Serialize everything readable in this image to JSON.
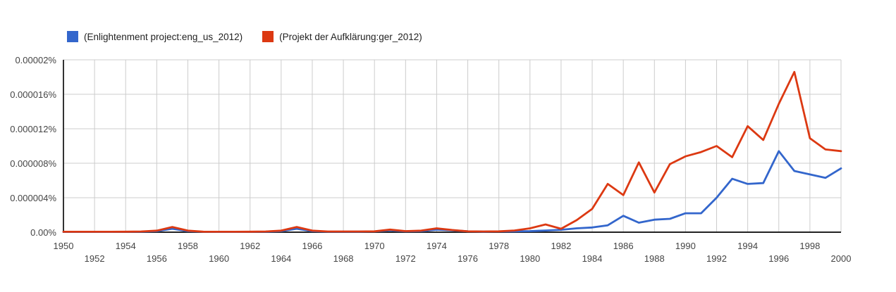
{
  "legend": {
    "items": [
      {
        "label": "(Enlightenment project:eng_us_2012)",
        "color": "#3366cc"
      },
      {
        "label": "(Projekt der Aufklärung:ger_2012)",
        "color": "#dc3912"
      }
    ]
  },
  "chart_data": {
    "type": "line",
    "title": "",
    "xlabel": "",
    "ylabel": "",
    "value_unit": "percent ×10^-6",
    "xlim": [
      1950,
      2000
    ],
    "ylim_e6pct": [
      0,
      20
    ],
    "grid": true,
    "legend_position": "top-left",
    "colors": {
      "gridline": "#cccccc",
      "x_axis": "#222222",
      "y_axis": "#333333"
    },
    "y_ticks": [
      {
        "value_e6pct": 0,
        "label": "0.00%"
      },
      {
        "value_e6pct": 4,
        "label": "0.000004%"
      },
      {
        "value_e6pct": 8,
        "label": "0.000008%"
      },
      {
        "value_e6pct": 12,
        "label": "0.000012%"
      },
      {
        "value_e6pct": 16,
        "label": "0.000016%"
      },
      {
        "value_e6pct": 20,
        "label": "0.00002%"
      }
    ],
    "x_ticks": {
      "step_years": 2,
      "stagger": "two-row",
      "labels": [
        "1950",
        "1952",
        "1954",
        "1956",
        "1958",
        "1960",
        "1962",
        "1964",
        "1966",
        "1968",
        "1970",
        "1972",
        "1974",
        "1976",
        "1978",
        "1980",
        "1982",
        "1984",
        "1986",
        "1988",
        "1990",
        "1992",
        "1994",
        "1996",
        "1998",
        "2000"
      ]
    },
    "x_years_range": "1950-2000 yearly",
    "series": [
      {
        "name": "(Enlightenment project:eng_us_2012)",
        "color": "#3366cc",
        "values_e6pct": [
          0.03,
          0.03,
          0.03,
          0.03,
          0.04,
          0.05,
          0.12,
          0.4,
          0.12,
          0.04,
          0.03,
          0.03,
          0.04,
          0.05,
          0.12,
          0.4,
          0.12,
          0.05,
          0.05,
          0.06,
          0.08,
          0.22,
          0.1,
          0.12,
          0.3,
          0.22,
          0.1,
          0.06,
          0.08,
          0.1,
          0.12,
          0.2,
          0.28,
          0.45,
          0.55,
          0.8,
          1.9,
          1.1,
          1.45,
          1.55,
          2.2,
          2.2,
          4.0,
          6.2,
          5.6,
          5.7,
          9.4,
          7.1,
          6.7,
          6.3,
          7.4
        ]
      },
      {
        "name": "(Projekt der Aufklärung:ger_2012)",
        "color": "#dc3912",
        "values_e6pct": [
          0.05,
          0.05,
          0.05,
          0.05,
          0.06,
          0.08,
          0.18,
          0.6,
          0.18,
          0.06,
          0.05,
          0.05,
          0.06,
          0.08,
          0.18,
          0.6,
          0.18,
          0.08,
          0.08,
          0.08,
          0.1,
          0.3,
          0.12,
          0.18,
          0.45,
          0.25,
          0.1,
          0.08,
          0.1,
          0.2,
          0.45,
          0.9,
          0.4,
          1.4,
          2.7,
          5.6,
          4.3,
          8.1,
          4.6,
          7.9,
          8.8,
          9.3,
          10.0,
          8.7,
          12.3,
          10.7,
          14.9,
          18.6,
          10.9,
          9.6,
          9.4
        ]
      }
    ]
  }
}
